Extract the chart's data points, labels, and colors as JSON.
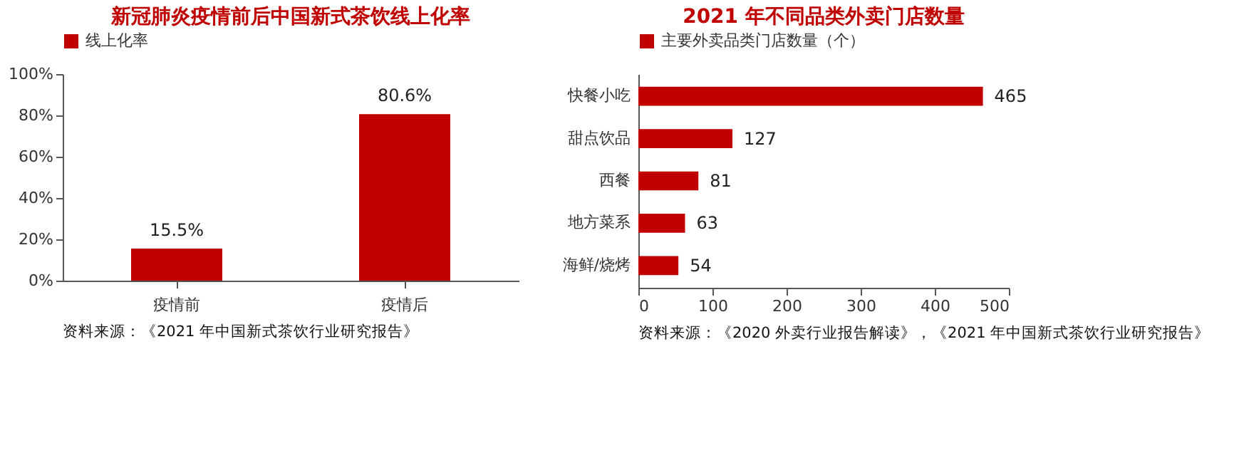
{
  "chart_data": [
    {
      "type": "bar",
      "title": "新冠肺炎疫情前后中国新式茶饮线上化率",
      "categories": [
        "疫情前",
        "疫情后"
      ],
      "series": [
        {
          "name": "线上化率",
          "color": "#c00000",
          "values": [
            15.5,
            80.6
          ],
          "value_labels": [
            "15.5%",
            "80.6%"
          ]
        }
      ],
      "ylim": [
        0,
        100
      ],
      "yticks": [
        {
          "value": 0,
          "label": "0%"
        },
        {
          "value": 20,
          "label": "20%"
        },
        {
          "value": 40,
          "label": "40%"
        },
        {
          "value": 60,
          "label": "60%"
        },
        {
          "value": 80,
          "label": "80%"
        },
        {
          "value": 100,
          "label": "100%"
        }
      ],
      "legend": "top",
      "grid": false,
      "annotations": [
        "资料来源：《2021 年中国新式茶饮行业研究报告》"
      ]
    },
    {
      "type": "bar",
      "orientation": "horizontal",
      "title": "2021 年不同品类外卖门店数量",
      "categories": [
        "快餐小吃",
        "甜点饮品",
        "西餐",
        "地方菜系",
        "海鲜/烧烤"
      ],
      "series": [
        {
          "name": "主要外卖品类门店数量（个）",
          "color": "#c00000",
          "values": [
            465,
            127,
            81,
            63,
            54
          ]
        }
      ],
      "xlim": [
        0,
        500
      ],
      "xticks": [
        0,
        100,
        200,
        300,
        400,
        500
      ],
      "legend": "top",
      "grid": false,
      "data_labels": true,
      "annotations": [
        "资料来源：《2020 外卖行业报告解读》，《2021 年中国新式茶饮行业研究报告》"
      ]
    }
  ]
}
